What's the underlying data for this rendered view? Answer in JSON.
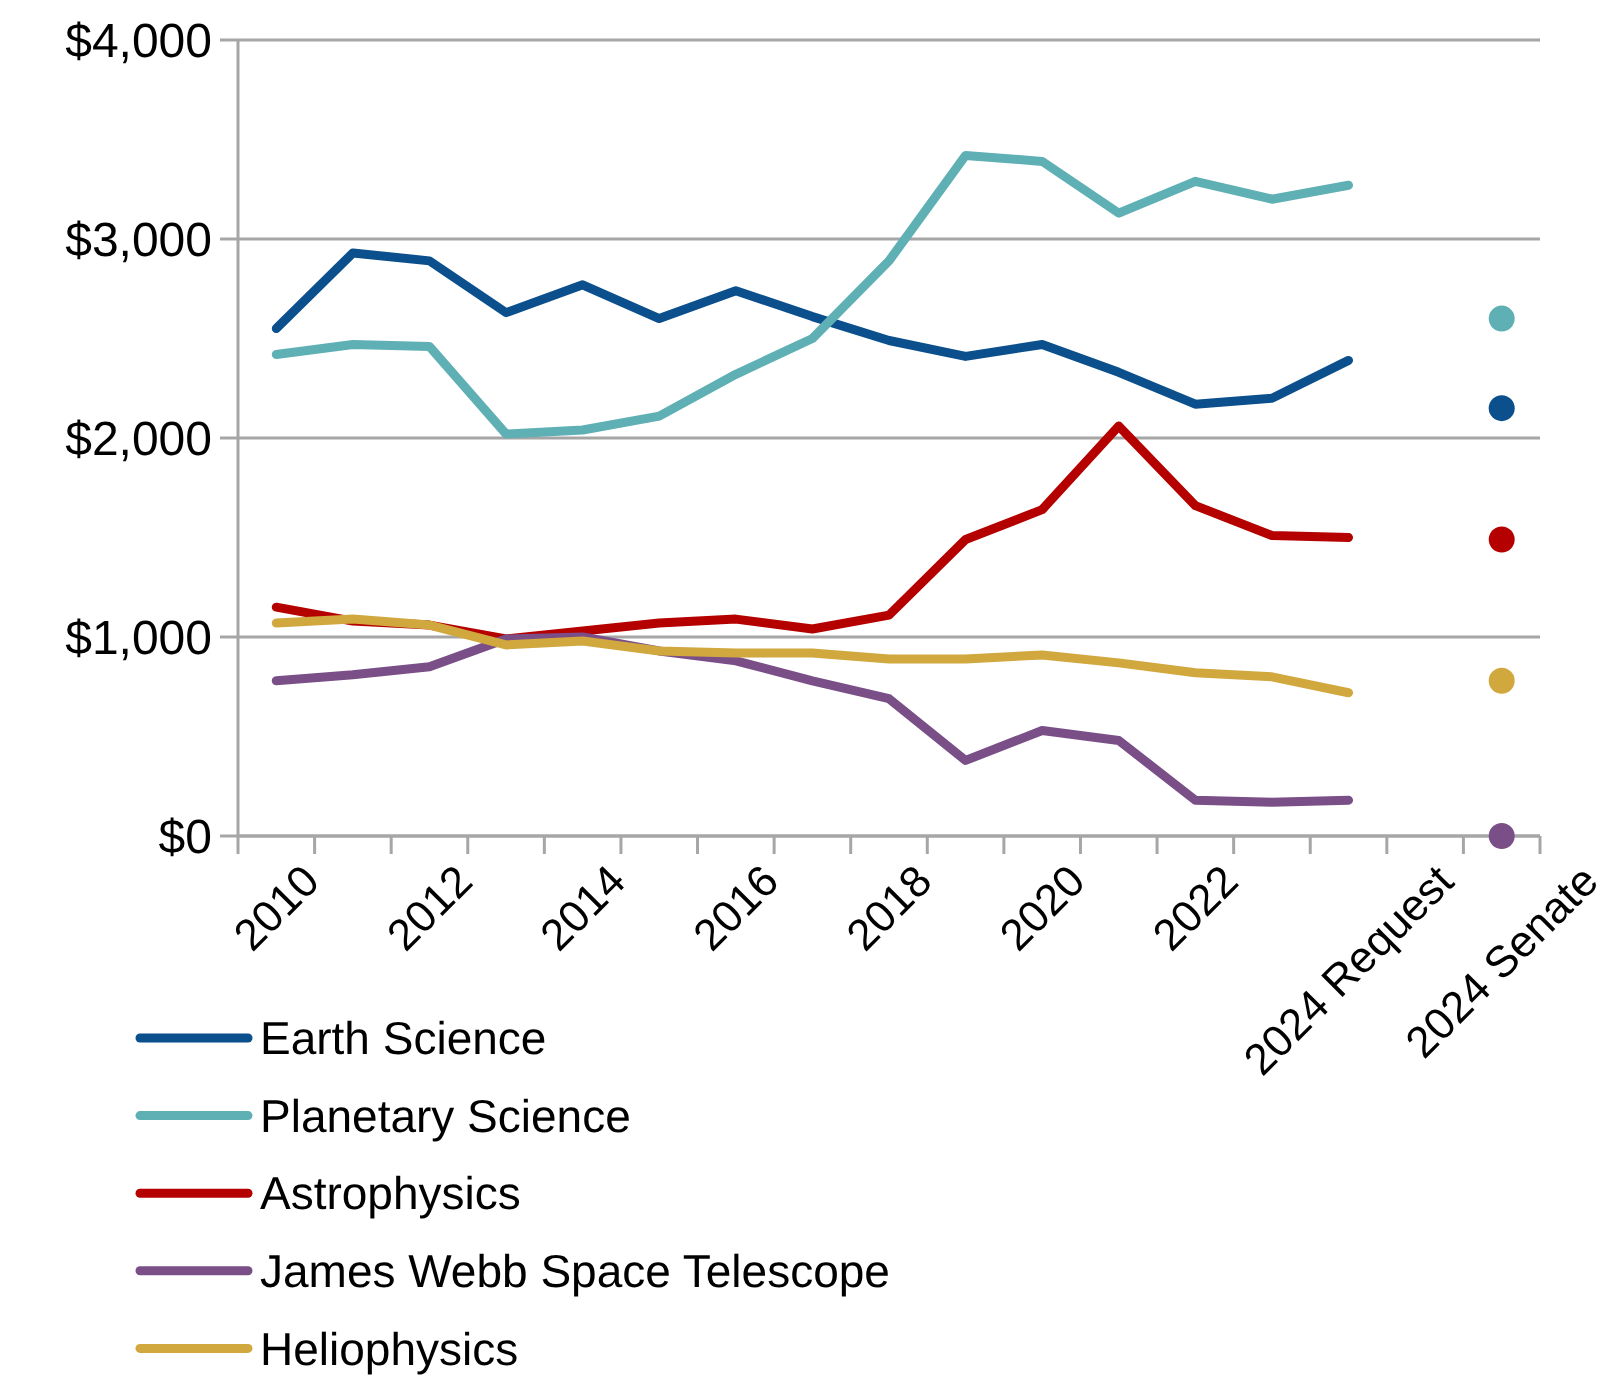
{
  "chart_data": {
    "type": "line",
    "categories": [
      "2010",
      null,
      "2012",
      null,
      "2014",
      null,
      "2016",
      null,
      "2018",
      null,
      "2020",
      null,
      "2022",
      null,
      "2024 Request",
      null,
      "2024 Senate"
    ],
    "series": [
      {
        "name": "Earth Science",
        "color": "#0b4f8c",
        "values": [
          2550,
          2930,
          2890,
          2630,
          2770,
          2600,
          2740,
          2610,
          2490,
          2410,
          2470,
          2330,
          2170,
          2200,
          2390,
          null,
          2150
        ]
      },
      {
        "name": "Planetary Science",
        "color": "#5fb0b5",
        "values": [
          2420,
          2470,
          2460,
          2020,
          2040,
          2110,
          2320,
          2500,
          2890,
          3420,
          3390,
          3130,
          3290,
          3200,
          3270,
          null,
          2600
        ]
      },
      {
        "name": "Astrophysics",
        "color": "#b50000",
        "values": [
          1150,
          1080,
          1060,
          990,
          1030,
          1070,
          1090,
          1040,
          1110,
          1490,
          1640,
          2060,
          1660,
          1510,
          1500,
          null,
          1490
        ]
      },
      {
        "name": "James Webb Space Telescope",
        "color": "#7a4f87",
        "values": [
          780,
          810,
          850,
          990,
          1000,
          930,
          880,
          780,
          690,
          380,
          530,
          480,
          180,
          170,
          180,
          null,
          0
        ]
      },
      {
        "name": "Heliophysics",
        "color": "#d1a83e",
        "values": [
          1070,
          1090,
          1060,
          960,
          980,
          930,
          920,
          920,
          890,
          890,
          910,
          870,
          820,
          800,
          720,
          null,
          780
        ]
      }
    ],
    "ylim": [
      0,
      4000
    ],
    "yticks": [
      {
        "value": 0,
        "label": "$0"
      },
      {
        "value": 1000,
        "label": "$1,000"
      },
      {
        "value": 2000,
        "label": "$2,000"
      },
      {
        "value": 3000,
        "label": "$3,000"
      },
      {
        "value": 4000,
        "label": "$4,000"
      }
    ],
    "grid": "y",
    "legend": "bottom left"
  }
}
